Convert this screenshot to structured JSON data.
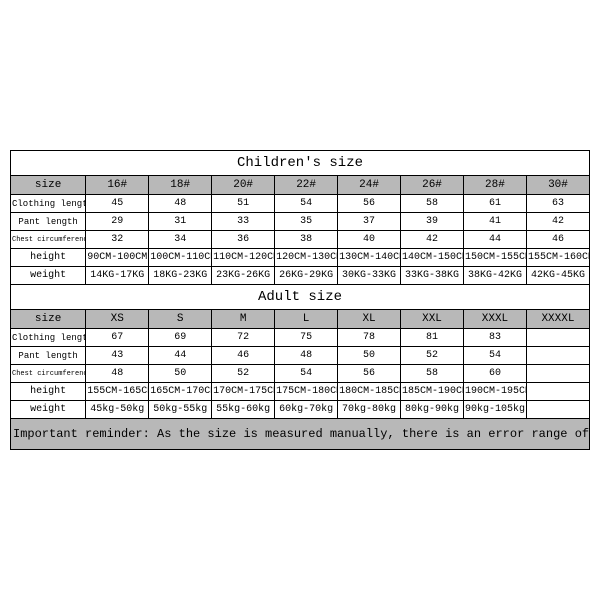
{
  "children": {
    "title": "Children's size",
    "header": [
      "size",
      "16#",
      "18#",
      "20#",
      "22#",
      "24#",
      "26#",
      "28#",
      "30#"
    ],
    "rows": [
      {
        "label": "Clothing length",
        "cls": "sm",
        "cells": [
          "45",
          "48",
          "51",
          "54",
          "56",
          "58",
          "61",
          "63"
        ]
      },
      {
        "label": "Pant length",
        "cls": "sm",
        "cells": [
          "29",
          "31",
          "33",
          "35",
          "37",
          "39",
          "41",
          "42"
        ]
      },
      {
        "label": "Chest circumference 1/2",
        "cls": "tiny",
        "cells": [
          "32",
          "34",
          "36",
          "38",
          "40",
          "42",
          "44",
          "46"
        ]
      },
      {
        "label": "height",
        "cls": "lbl",
        "cells": [
          "90CM-100CM",
          "100CM-110CM",
          "110CM-120CM",
          "120CM-130CM",
          "130CM-140CM",
          "140CM-150CM",
          "150CM-155CM",
          "155CM-160CM"
        ]
      },
      {
        "label": "weight",
        "cls": "lbl",
        "cells": [
          "14KG-17KG",
          "18KG-23KG",
          "23KG-26KG",
          "26KG-29KG",
          "30KG-33KG",
          "33KG-38KG",
          "38KG-42KG",
          "42KG-45KG"
        ]
      }
    ]
  },
  "adult": {
    "title": "Adult size",
    "header": [
      "size",
      "XS",
      "S",
      "M",
      "L",
      "XL",
      "XXL",
      "XXXL",
      "XXXXL"
    ],
    "rows": [
      {
        "label": "Clothing length",
        "cls": "sm",
        "cells": [
          "67",
          "69",
          "72",
          "75",
          "78",
          "81",
          "83",
          ""
        ]
      },
      {
        "label": "Pant length",
        "cls": "sm",
        "cells": [
          "43",
          "44",
          "46",
          "48",
          "50",
          "52",
          "54",
          ""
        ]
      },
      {
        "label": "Chest circumference 1/2",
        "cls": "tiny",
        "cells": [
          "48",
          "50",
          "52",
          "54",
          "56",
          "58",
          "60",
          ""
        ]
      },
      {
        "label": "height",
        "cls": "lbl",
        "cells": [
          "155CM-165CM",
          "165CM-170CM",
          "170CM-175CM",
          "175CM-180CM",
          "180CM-185CM",
          "185CM-190CM",
          "190CM-195CM",
          ""
        ]
      },
      {
        "label": "weight",
        "cls": "lbl",
        "cells": [
          "45kg-50kg",
          "50kg-55kg",
          "55kg-60kg",
          "60kg-70kg",
          "70kg-80kg",
          "80kg-90kg",
          "90kg-105kg",
          ""
        ]
      }
    ]
  },
  "reminder": "Important reminder: As the size is measured manually, there is an error range of 1cm-3cm"
}
